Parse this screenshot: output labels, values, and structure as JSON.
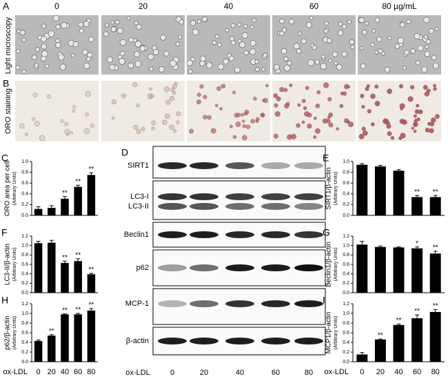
{
  "panel_a": {
    "letter": "A",
    "label": "Light microscopy",
    "doses": [
      "0",
      "20",
      "40",
      "60",
      "80 µg/mL"
    ]
  },
  "panel_b": {
    "letter": "B",
    "label": "ORO staining"
  },
  "panel_d": {
    "letter": "D",
    "bands": [
      "SIRT1",
      "LC3-I",
      "LC3-II",
      "Beclin1",
      "p62",
      "MCP-1",
      "β-actin"
    ],
    "xlabel": "ox-LDL",
    "doses": [
      "0",
      "20",
      "40",
      "60",
      "80"
    ]
  },
  "chart_data": [
    {
      "type": "bar",
      "panel": "C",
      "ylabel": "ORO area per cell",
      "ylabel_units": "(Arbitrary Units)",
      "categories": [
        null,
        null,
        null,
        null,
        null
      ],
      "values": [
        0.12,
        0.14,
        0.31,
        0.53,
        0.75
      ],
      "errors": [
        0.04,
        0.04,
        0.04,
        0.03,
        0.04
      ],
      "significance": [
        null,
        null,
        "**",
        "**",
        "**"
      ],
      "color": "#000000",
      "ylim": [
        0,
        1.0
      ],
      "yticks": [
        {
          "value": 0,
          "label": "0.0"
        },
        0.2,
        0.4,
        0.6,
        0.8,
        {
          "value": 1.0,
          "label": "1.0"
        }
      ]
    },
    {
      "type": "bar",
      "panel": "F",
      "ylabel": "LC3-II/β-actin",
      "ylabel_units": "(Arbitrary Units)",
      "categories": [
        null,
        null,
        null,
        null,
        null
      ],
      "values": [
        1.05,
        1.06,
        0.63,
        0.67,
        0.39
      ],
      "errors": [
        0.04,
        0.05,
        0.04,
        0.05,
        0.02
      ],
      "significance": [
        null,
        null,
        "**",
        "**",
        "**"
      ],
      "color": "#000000",
      "ylim": [
        0,
        1.2
      ],
      "yticks": [
        {
          "value": 0,
          "label": "0.0"
        },
        0.2,
        0.4,
        0.6,
        0.8,
        {
          "value": 1.0,
          "label": "1.0"
        },
        1.2
      ]
    },
    {
      "type": "bar",
      "panel": "H",
      "ylabel": "p62/β-actin",
      "ylabel_units": "(Arbitrary Units)",
      "xlabel": "ox-LDL",
      "categories": [
        "0",
        "20",
        "40",
        "60",
        "80"
      ],
      "values": [
        0.43,
        0.54,
        0.98,
        0.98,
        1.06
      ],
      "errors": [
        0.02,
        0.02,
        0.01,
        0.02,
        0.04
      ],
      "significance": [
        null,
        "**",
        "**",
        "**",
        "**"
      ],
      "color": "#000000",
      "ylim": [
        0,
        1.2
      ],
      "yticks": [
        {
          "value": 0,
          "label": "0.0"
        },
        0.2,
        0.4,
        0.6,
        0.8,
        {
          "value": 1.0,
          "label": "1.0"
        },
        1.2
      ]
    },
    {
      "type": "bar",
      "panel": "E",
      "ylabel": "SIRT1/β-actin",
      "ylabel_units": "(Arbitrary Units)",
      "categories": [
        null,
        null,
        null,
        null,
        null
      ],
      "values": [
        0.94,
        0.91,
        0.83,
        0.34,
        0.34
      ],
      "errors": [
        0.02,
        0.02,
        0.02,
        0.03,
        0.03
      ],
      "significance": [
        null,
        null,
        null,
        "**",
        "**"
      ],
      "color": "#000000",
      "ylim": [
        0,
        1.0
      ],
      "yticks": [
        {
          "value": 0,
          "label": "0.0"
        },
        0.2,
        0.4,
        0.6,
        0.8,
        {
          "value": 1.0,
          "label": "1.0"
        }
      ]
    },
    {
      "type": "bar",
      "panel": "G",
      "ylabel": "Beclin1/β-actin",
      "ylabel_units": "(Arbitrary Units)",
      "categories": [
        null,
        null,
        null,
        null,
        null
      ],
      "values": [
        1.02,
        0.97,
        0.96,
        0.94,
        0.83
      ],
      "errors": [
        0.07,
        0.02,
        0.01,
        0.03,
        0.05
      ],
      "significance": [
        null,
        null,
        null,
        "*",
        "**"
      ],
      "color": "#000000",
      "ylim": [
        0,
        1.2
      ],
      "yticks": [
        {
          "value": 0,
          "label": "0.0"
        },
        0.2,
        0.4,
        0.6,
        0.8,
        {
          "value": 1.0,
          "label": "1.0"
        },
        1.2
      ]
    },
    {
      "type": "bar",
      "panel": "I",
      "ylabel": "MCP1/β-actin",
      "ylabel_units": "(Arbitrary Units)",
      "xlabel": "ox-LDL",
      "categories": [
        "0",
        "20",
        "40",
        "60",
        "80"
      ],
      "values": [
        0.15,
        0.46,
        0.76,
        0.9,
        1.03
      ],
      "errors": [
        0.04,
        0.01,
        0.02,
        0.07,
        0.05
      ],
      "significance": [
        null,
        "**",
        "**",
        "**",
        "**"
      ],
      "color": "#000000",
      "ylim": [
        0,
        1.2
      ],
      "yticks": [
        {
          "value": 0,
          "label": "0.0"
        },
        0.2,
        0.4,
        0.6,
        0.8,
        {
          "value": 1.0,
          "label": "1.0"
        },
        1.2
      ]
    }
  ]
}
